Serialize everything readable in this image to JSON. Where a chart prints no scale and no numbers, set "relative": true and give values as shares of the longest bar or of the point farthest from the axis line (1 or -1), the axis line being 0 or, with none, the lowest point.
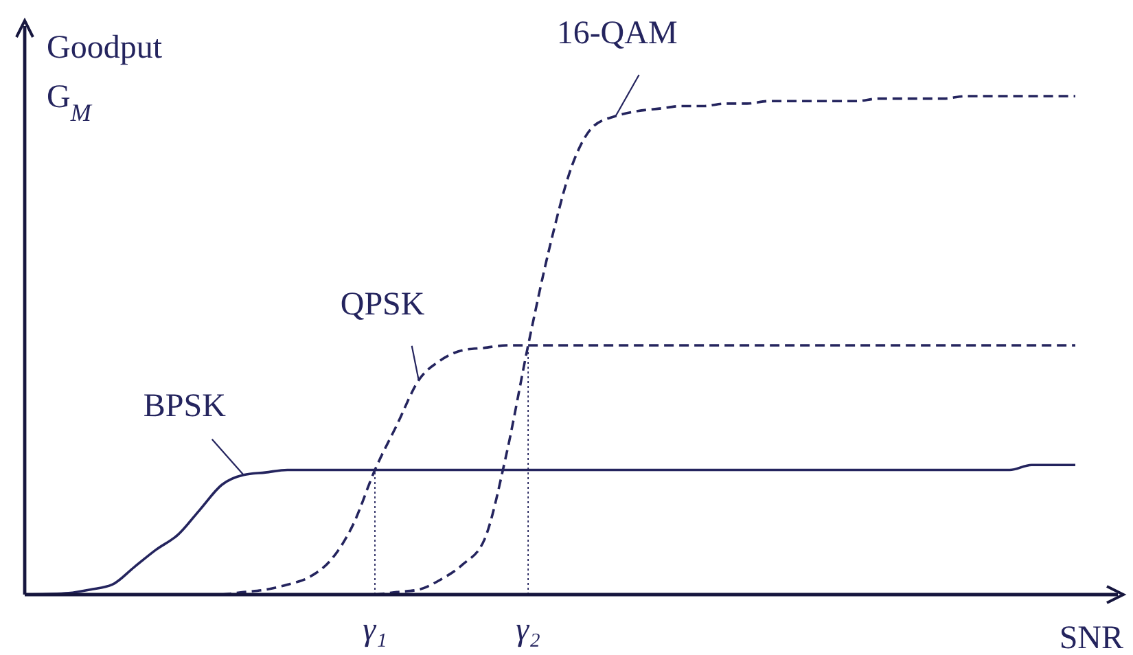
{
  "chart_data": {
    "type": "line",
    "relative": true,
    "xlabel": "SNR",
    "ylabel": "Goodput G$_{M}$",
    "categories": [
      null,
      null,
      null,
      null,
      null,
      null,
      null,
      null,
      null,
      null,
      null,
      null,
      null,
      null,
      null,
      null,
      "γ₁",
      null,
      null,
      null,
      null,
      null,
      null,
      "γ₂",
      null,
      null,
      null,
      null,
      null,
      null,
      null,
      null,
      null,
      null,
      null,
      null,
      null,
      null,
      null,
      null,
      null,
      null,
      null,
      null,
      null,
      null,
      null,
      null,
      null
    ],
    "tick_labels": "x",
    "ref_lines": [
      {
        "axis": "x",
        "value": "γ₁",
        "label": null,
        "line_style": "dotted"
      },
      {
        "axis": "x",
        "value": "γ₂",
        "label": null,
        "line_style": "dotted"
      }
    ],
    "series": [
      {
        "name": "BPSK",
        "color": "#24245e",
        "line_style": "solid",
        "values": [
          0,
          0.001,
          0.003,
          0.01,
          0.02,
          0.055,
          0.09,
          0.12,
          0.17,
          0.22,
          0.24,
          0.245,
          0.25,
          0.25,
          0.25,
          0.25,
          0.25,
          0.25,
          0.25,
          0.25,
          0.25,
          0.25,
          0.25,
          0.25,
          0.25,
          0.25,
          0.25,
          0.25,
          0.25,
          0.25,
          0.25,
          0.25,
          0.25,
          0.25,
          0.25,
          0.25,
          0.25,
          0.25,
          0.25,
          0.25,
          0.25,
          0.25,
          0.25,
          0.25,
          0.25,
          0.25,
          0.26,
          0.26,
          0.26
        ]
      },
      {
        "name": "QPSK",
        "color": "#24245e",
        "line_style": "dashed",
        "values": [
          null,
          null,
          null,
          null,
          null,
          null,
          null,
          null,
          null,
          0,
          0.005,
          0.01,
          0.02,
          0.035,
          0.07,
          0.14,
          0.25,
          0.34,
          0.43,
          0.47,
          0.49,
          0.495,
          0.5,
          0.5,
          0.5,
          0.5,
          0.5,
          0.5,
          0.5,
          0.5,
          0.5,
          0.5,
          0.5,
          0.5,
          0.5,
          0.5,
          0.5,
          0.5,
          0.5,
          0.5,
          0.5,
          0.5,
          0.5,
          0.5,
          0.5,
          0.5,
          0.5,
          0.5,
          0.5
        ]
      },
      {
        "name": "16-QAM",
        "color": "#24245e",
        "line_style": "dashed",
        "values": [
          null,
          null,
          null,
          null,
          null,
          null,
          null,
          null,
          null,
          null,
          null,
          null,
          null,
          null,
          null,
          null,
          0,
          0.005,
          0.01,
          0.03,
          0.06,
          0.11,
          0.28,
          0.5,
          0.7,
          0.86,
          0.94,
          0.96,
          0.97,
          0.975,
          0.98,
          0.98,
          0.985,
          0.985,
          0.99,
          0.99,
          0.99,
          0.99,
          0.99,
          0.995,
          0.995,
          0.995,
          0.995,
          1,
          1,
          1,
          1,
          1,
          1
        ]
      }
    ]
  }
}
